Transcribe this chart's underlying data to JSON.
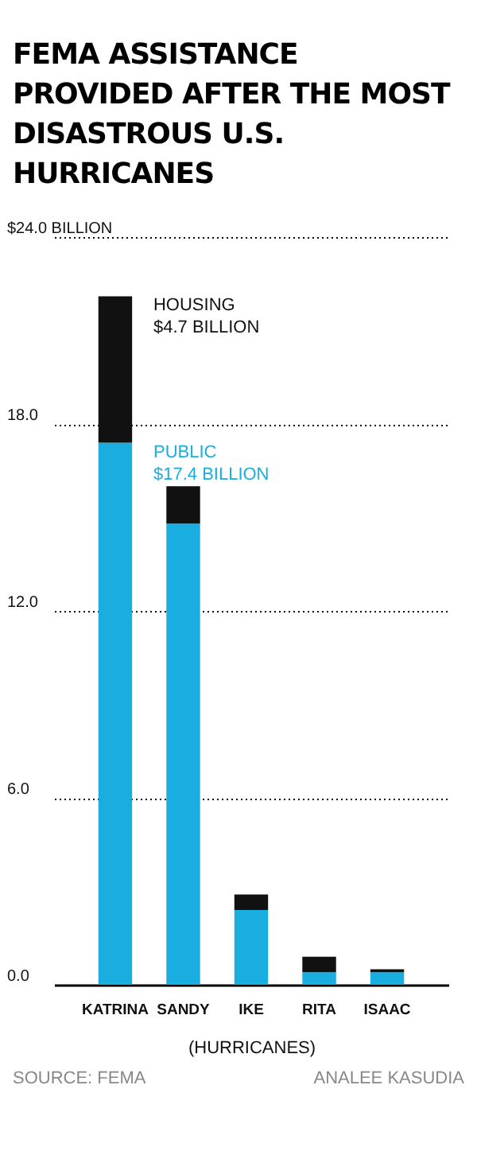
{
  "chart_data": {
    "type": "bar",
    "title": "FEMA ASSISTANCE PROVIDED AFTER THE MOST DISASTROUS U.S. HURRICANES",
    "xlabel": "(HURRICANES)",
    "categories": [
      "KATRINA",
      "SANDY",
      "IKE",
      "RITA",
      "ISAAC"
    ],
    "stacked": true,
    "series": [
      {
        "color": "#1aaee0",
        "values": [
          17.4,
          14.8,
          2.4,
          0.4,
          0.4
        ]
      },
      {
        "color": "#111111",
        "values": [
          4.7,
          1.2,
          0.5,
          0.5,
          0.1
        ]
      }
    ],
    "ylim": [
      0,
      24
    ],
    "yticks": [
      {
        "value": 0,
        "label": "0.0"
      },
      {
        "value": 6,
        "label": "6.0"
      },
      {
        "value": 12,
        "label": "12.0"
      },
      {
        "value": 18,
        "label": "18.0"
      },
      {
        "value": 24,
        "label": "$24.0 BILLION"
      }
    ],
    "grid": "y",
    "legend": false,
    "annotations": [
      {
        "text": "HOUSING\n$4.7 BILLION",
        "x": "KATRINA",
        "y": 22.1
      },
      {
        "text": "PUBLIC\n$17.4 BILLION",
        "x": "KATRINA",
        "y": 17.4
      },
      "SOURCE: FEMA",
      "ANALEE KASUDIA"
    ]
  }
}
